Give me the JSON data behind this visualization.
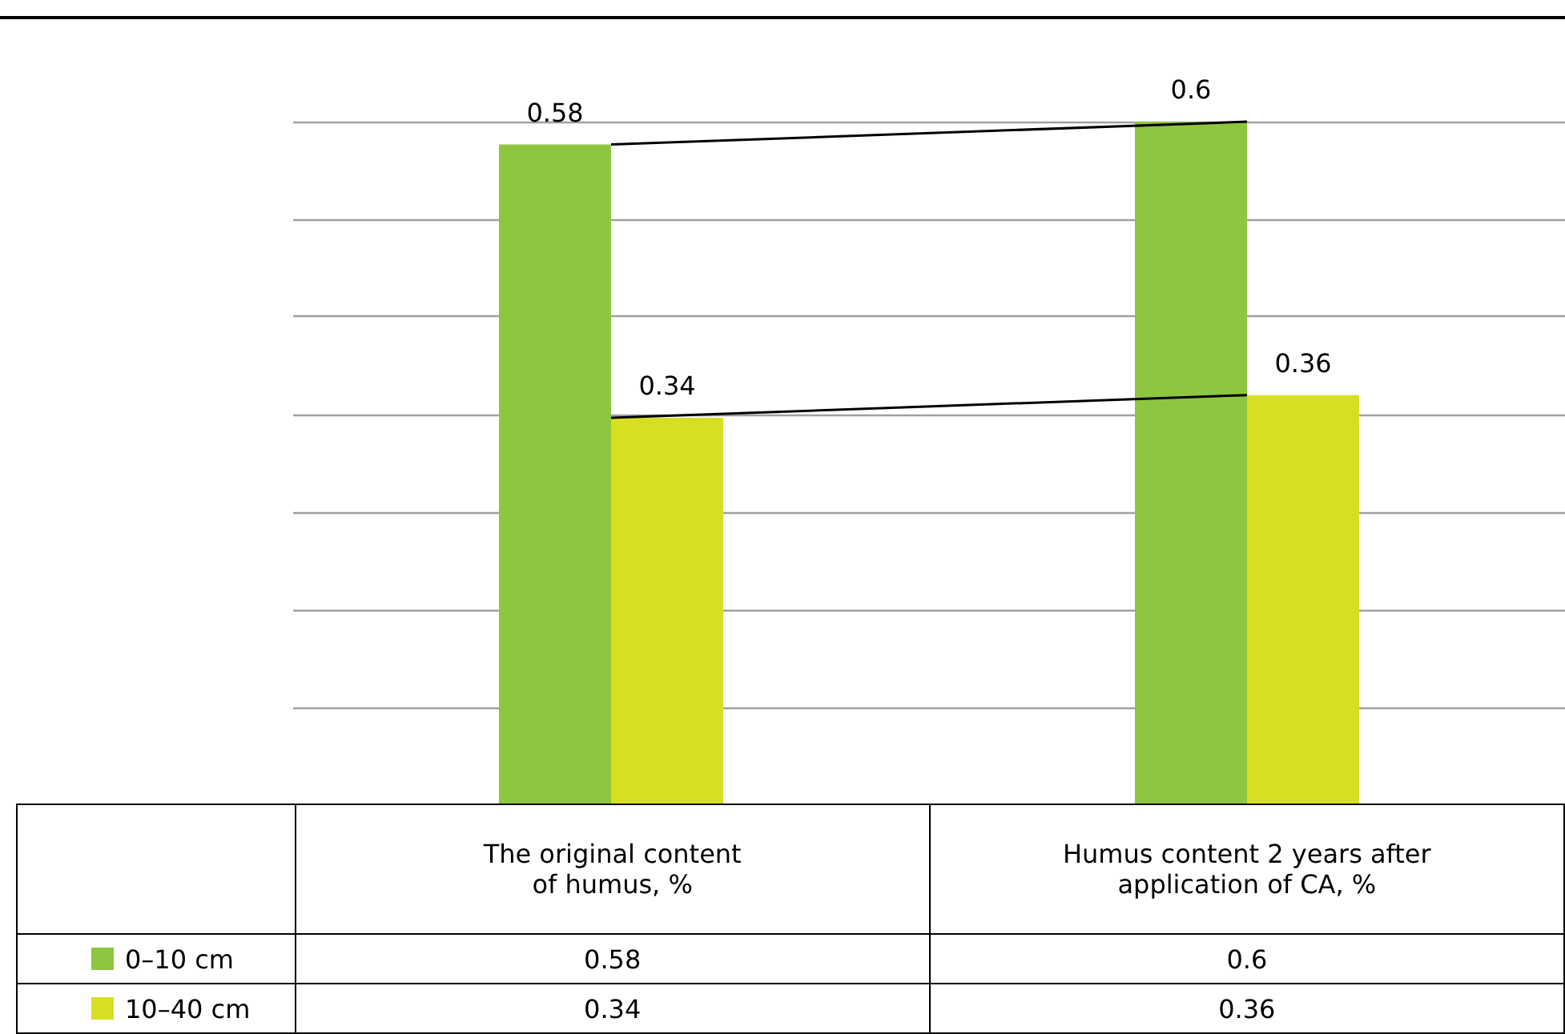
{
  "chart_data": {
    "type": "bar",
    "categories": [
      "The original content\nof humus, %",
      "Humus content 2 years after\napplication of CA, %"
    ],
    "series": [
      {
        "name": "0–10 cm",
        "color": "#8dc63f",
        "values": [
          0.58,
          0.6
        ]
      },
      {
        "name": "10–40 cm",
        "color": "#d7df23",
        "values": [
          0.34,
          0.36
        ]
      },
      {
        "type": "line",
        "color": "#000000",
        "values": [
          0.58,
          0.6
        ]
      },
      {
        "type": "line",
        "color": "#000000",
        "values": [
          0.34,
          0.36
        ]
      }
    ],
    "ylim": [
      0,
      0.69
    ],
    "yticks": [
      {
        "value": 0.086,
        "label": null
      },
      {
        "value": 0.171,
        "label": null
      },
      {
        "value": 0.257,
        "label": null
      },
      {
        "value": 0.343,
        "label": null
      },
      {
        "value": 0.429,
        "label": null
      },
      {
        "value": 0.514,
        "label": null
      },
      {
        "value": 0.6,
        "label": null
      }
    ],
    "grid": "y",
    "tick_labels": "x",
    "data_labels": true,
    "legend": "bottom",
    "marker": "none",
    "line_style": "solid"
  }
}
